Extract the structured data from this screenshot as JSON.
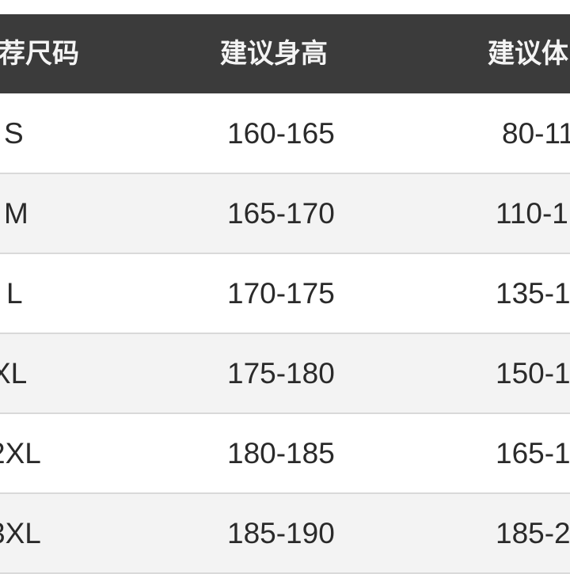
{
  "table": {
    "headers": [
      "荐尺码",
      "建议身高",
      "建议体"
    ],
    "rows": [
      {
        "size": "S",
        "height": "160-165",
        "weight": "80-11"
      },
      {
        "size": "M",
        "height": "165-170",
        "weight": "110-1"
      },
      {
        "size": "L",
        "height": "170-175",
        "weight": "135-1"
      },
      {
        "size": "XL",
        "height": "175-180",
        "weight": "150-1"
      },
      {
        "size": "2XL",
        "height": "180-185",
        "weight": "165-1"
      },
      {
        "size": "3XL",
        "height": "185-190",
        "weight": "185-2"
      }
    ]
  },
  "colors": {
    "header_bg": "#3b3b3b",
    "header_text": "#f4f4f4",
    "alt_row": "#f3f3f3",
    "text": "#2a2a2a"
  }
}
